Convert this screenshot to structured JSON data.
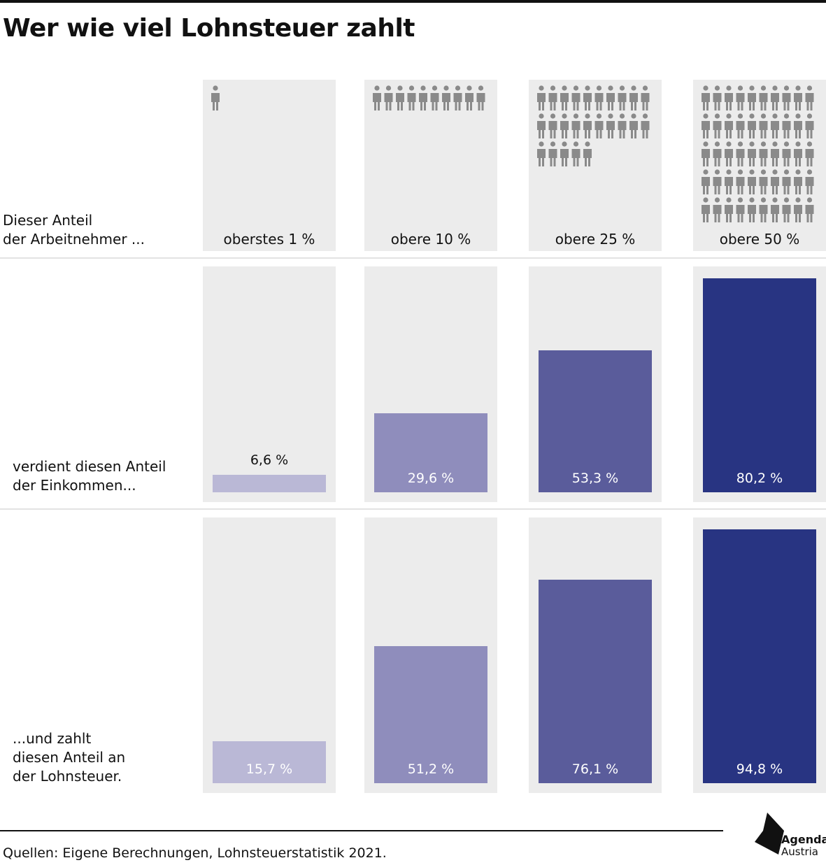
{
  "title": "Wer wie viel Lohnsteuer zahlt",
  "row_labels": {
    "workers": [
      "Dieser Anteil",
      "der Arbeitnehmer ..."
    ],
    "income": [
      "verdient diesen Anteil",
      "der Einkommen..."
    ],
    "tax": [
      "...und zahlt",
      "diesen Anteil an",
      "der Lohnsteuer."
    ]
  },
  "chart_data": {
    "type": "bar",
    "categories": [
      "oberstes 1 %",
      "obere 10 %",
      "obere 25 %",
      "obere 50 %"
    ],
    "people_icons": [
      1,
      10,
      25,
      50
    ],
    "series": [
      {
        "values": [
          6.6,
          29.6,
          53.3,
          80.2
        ],
        "labels": [
          "6,6 %",
          "29,6 %",
          "53,3 %",
          "80,2 %"
        ]
      },
      {
        "values": [
          15.7,
          51.2,
          76.1,
          94.8
        ],
        "labels": [
          "15,7 %",
          "51,2 %",
          "76,1 %",
          "94,8 %"
        ]
      }
    ],
    "ylim": [
      0,
      100
    ],
    "colors": [
      "#bab8d6",
      "#8f8dbc",
      "#5a5c9b",
      "#283482"
    ],
    "panel_color": "#ececec",
    "icon_color": "#8a8a8a"
  },
  "source": "Quellen: Eigene Berechnungen, Lohnsteuerstatistik 2021.",
  "logo": {
    "name": "Agenda",
    "sub": "Austria"
  }
}
